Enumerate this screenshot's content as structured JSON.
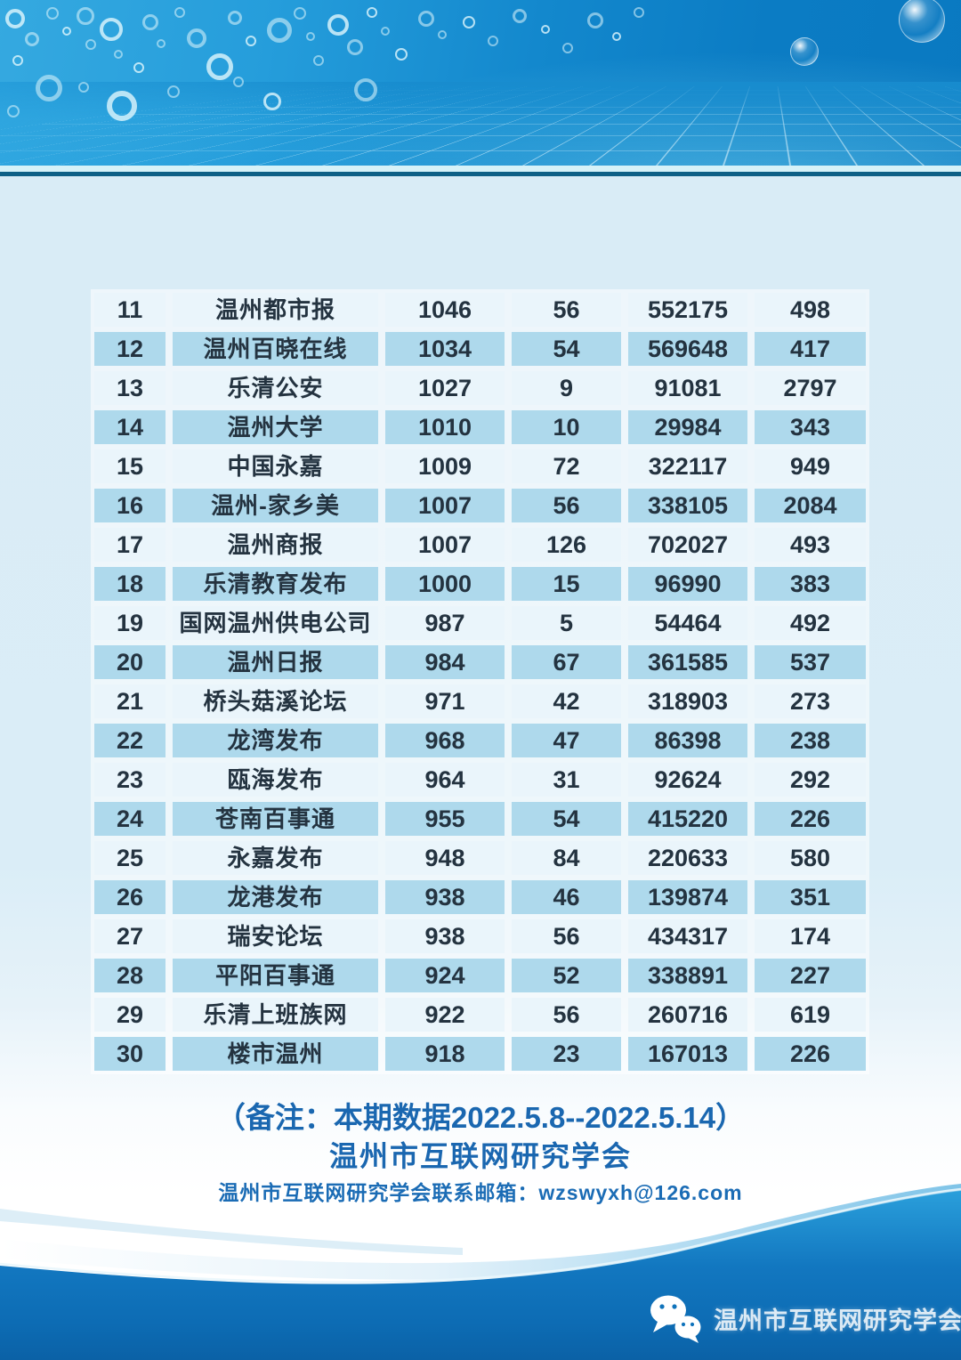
{
  "table": {
    "rows": [
      {
        "rank": "11",
        "name": "温州都市报",
        "values": [
          "1046",
          "56",
          "552175",
          "498"
        ]
      },
      {
        "rank": "12",
        "name": "温州百晓在线",
        "values": [
          "1034",
          "54",
          "569648",
          "417"
        ]
      },
      {
        "rank": "13",
        "name": "乐清公安",
        "values": [
          "1027",
          "9",
          "91081",
          "2797"
        ]
      },
      {
        "rank": "14",
        "name": "温州大学",
        "values": [
          "1010",
          "10",
          "29984",
          "343"
        ]
      },
      {
        "rank": "15",
        "name": "中国永嘉",
        "values": [
          "1009",
          "72",
          "322117",
          "949"
        ]
      },
      {
        "rank": "16",
        "name": "温州-家乡美",
        "values": [
          "1007",
          "56",
          "338105",
          "2084"
        ]
      },
      {
        "rank": "17",
        "name": "温州商报",
        "values": [
          "1007",
          "126",
          "702027",
          "493"
        ]
      },
      {
        "rank": "18",
        "name": "乐清教育发布",
        "values": [
          "1000",
          "15",
          "96990",
          "383"
        ]
      },
      {
        "rank": "19",
        "name": "国网温州供电公司",
        "values": [
          "987",
          "5",
          "54464",
          "492"
        ]
      },
      {
        "rank": "20",
        "name": "温州日报",
        "values": [
          "984",
          "67",
          "361585",
          "537"
        ]
      },
      {
        "rank": "21",
        "name": "桥头菇溪论坛",
        "values": [
          "971",
          "42",
          "318903",
          "273"
        ]
      },
      {
        "rank": "22",
        "name": "龙湾发布",
        "values": [
          "968",
          "47",
          "86398",
          "238"
        ]
      },
      {
        "rank": "23",
        "name": "瓯海发布",
        "values": [
          "964",
          "31",
          "92624",
          "292"
        ]
      },
      {
        "rank": "24",
        "name": "苍南百事通",
        "values": [
          "955",
          "54",
          "415220",
          "226"
        ]
      },
      {
        "rank": "25",
        "name": "永嘉发布",
        "values": [
          "948",
          "84",
          "220633",
          "580"
        ]
      },
      {
        "rank": "26",
        "name": "龙港发布",
        "values": [
          "938",
          "46",
          "139874",
          "351"
        ]
      },
      {
        "rank": "27",
        "name": "瑞安论坛",
        "values": [
          "938",
          "56",
          "434317",
          "174"
        ]
      },
      {
        "rank": "28",
        "name": "平阳百事通",
        "values": [
          "924",
          "52",
          "338891",
          "227"
        ]
      },
      {
        "rank": "29",
        "name": "乐清上班族网",
        "values": [
          "922",
          "56",
          "260716",
          "619"
        ]
      },
      {
        "rank": "30",
        "name": "楼市温州",
        "values": [
          "918",
          "23",
          "167013",
          "226"
        ]
      }
    ]
  },
  "notes": {
    "line1": "（备注：本期数据2022.5.8--2022.5.14）",
    "line2": "温州市互联网研究学会",
    "line3": "温州市互联网研究学会联系邮箱：wzswyxh@126.com"
  },
  "footer": {
    "wechat_label": "温州市互联网研究学会"
  },
  "colors": {
    "header_blue": "#0b7cc4",
    "body_light_blue": "#d9ecf6",
    "row_odd": "#eaf5fb",
    "row_even": "#aed9ec",
    "cell_text": "#243340",
    "note_blue": "#1a67b0",
    "footer_wave_blue": "#0f72bd",
    "separator_dark": "#0e6086"
  }
}
